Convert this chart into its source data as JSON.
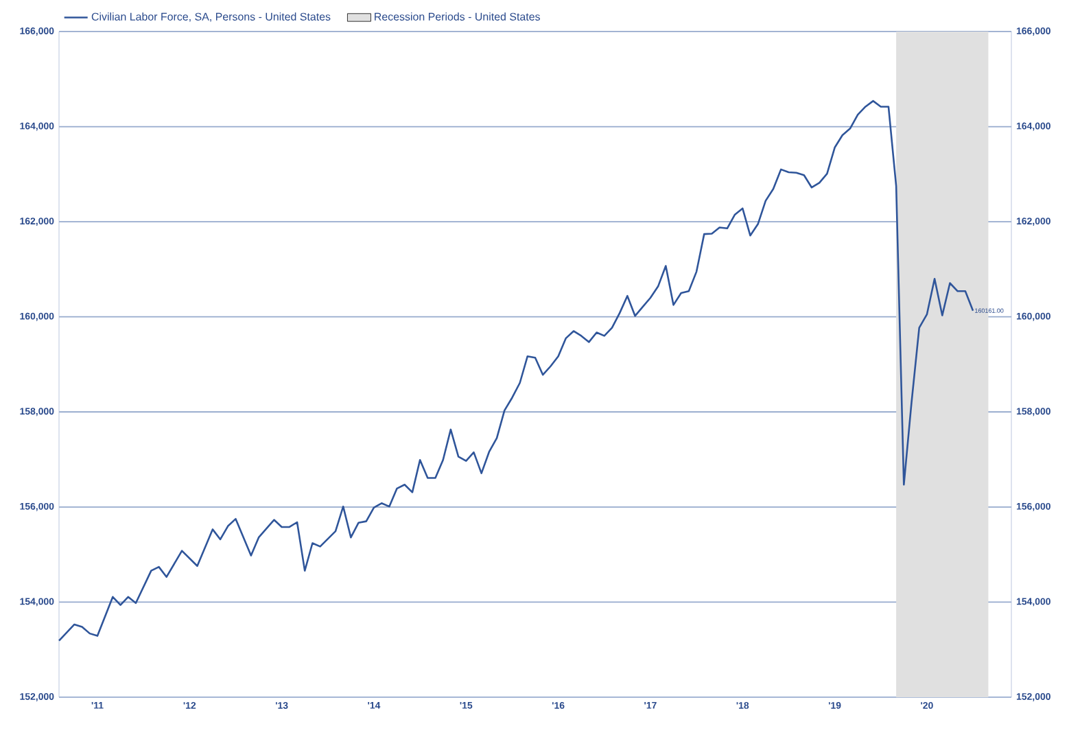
{
  "chart_data": {
    "type": "line",
    "legend": "top left",
    "grid": "y",
    "x": [
      "2011-02",
      "2011-04",
      "2011-05",
      "2011-06",
      "2011-07",
      "2011-09",
      "2011-10",
      "2011-11",
      "2011-12",
      "2012-02",
      "2012-03",
      "2012-04",
      "2012-06",
      "2012-08",
      "2012-10",
      "2012-11",
      "2012-12",
      "2013-01",
      "2013-03",
      "2013-04",
      "2013-06",
      "2013-07",
      "2013-08",
      "2013-09",
      "2013-10",
      "2013-11",
      "2013-12",
      "2014-02",
      "2014-03",
      "2014-04",
      "2014-05",
      "2014-06",
      "2014-07",
      "2014-08",
      "2014-09",
      "2014-10",
      "2014-11",
      "2014-12",
      "2015-01",
      "2015-02",
      "2015-03",
      "2015-04",
      "2015-05",
      "2015-06",
      "2015-07",
      "2015-08",
      "2015-09",
      "2015-10",
      "2015-11",
      "2015-12",
      "2016-01",
      "2016-02",
      "2016-03",
      "2016-04",
      "2016-05",
      "2016-06",
      "2016-07",
      "2016-08",
      "2016-09",
      "2016-10",
      "2016-11",
      "2016-12",
      "2017-01",
      "2017-02",
      "2017-03",
      "2017-04",
      "2017-05",
      "2017-06",
      "2017-07",
      "2017-08",
      "2017-09",
      "2017-10",
      "2017-11",
      "2017-12",
      "2018-01",
      "2018-02",
      "2018-03",
      "2018-04",
      "2018-05",
      "2018-06",
      "2018-07",
      "2018-08",
      "2018-09",
      "2018-10",
      "2018-11",
      "2018-12",
      "2019-01",
      "2019-02",
      "2019-03",
      "2019-04",
      "2019-05",
      "2019-06",
      "2019-07",
      "2019-08",
      "2019-09",
      "2019-10",
      "2019-11",
      "2019-12",
      "2020-01",
      "2020-02",
      "2020-03",
      "2020-04",
      "2020-05",
      "2020-06",
      "2020-07",
      "2020-08",
      "2020-09",
      "2020-10",
      "2020-11",
      "2020-12",
      "2021-01"
    ],
    "series": [
      {
        "name": "Civilian Labor Force, SA, Persons - United States",
        "color": "#2f559a",
        "values": [
          153190,
          153530,
          153480,
          153340,
          153290,
          154110,
          153940,
          154110,
          153980,
          154660,
          154740,
          154530,
          155080,
          154760,
          155530,
          155320,
          155600,
          155750,
          154980,
          155360,
          155730,
          155580,
          155580,
          155680,
          154660,
          155240,
          155170,
          155490,
          156010,
          155360,
          155670,
          155700,
          155990,
          156080,
          156010,
          156390,
          156470,
          156310,
          156990,
          156610,
          156610,
          156990,
          157630,
          157060,
          156970,
          157150,
          156710,
          157160,
          157450,
          158030,
          158300,
          158610,
          159170,
          159140,
          158780,
          158960,
          159170,
          159550,
          159700,
          159600,
          159470,
          159670,
          159600,
          159770,
          160080,
          160440,
          160020,
          160210,
          160400,
          160640,
          161070,
          160250,
          160500,
          160540,
          160950,
          161740,
          161750,
          161880,
          161860,
          162150,
          162280,
          161710,
          161950,
          162440,
          162690,
          163100,
          163040,
          163030,
          162980,
          162720,
          162820,
          163010,
          163560,
          163820,
          163960,
          164250,
          164420,
          164540,
          164420,
          164420,
          162750,
          156470,
          158200,
          159770,
          160050,
          160800,
          160030,
          160710,
          160540,
          160540,
          160130
        ]
      }
    ],
    "ylim": [
      152000,
      166000
    ],
    "yticks": [
      {
        "value": 152000,
        "label": "152,000"
      },
      {
        "value": 154000,
        "label": "154,000"
      },
      {
        "value": 156000,
        "label": "156,000"
      },
      {
        "value": 158000,
        "label": "158,000"
      },
      {
        "value": 160000,
        "label": "160,000"
      },
      {
        "value": 162000,
        "label": "162,000"
      },
      {
        "value": 164000,
        "label": "164,000"
      },
      {
        "value": 166000,
        "label": "166,000"
      }
    ],
    "y2lim": [
      152000,
      166000
    ],
    "y2ticks": [
      {
        "value": 152000,
        "label": "152,000"
      },
      {
        "value": 154000,
        "label": "154,000"
      },
      {
        "value": 156000,
        "label": "156,000"
      },
      {
        "value": 158000,
        "label": "158,000"
      },
      {
        "value": 160000,
        "label": "160,000"
      },
      {
        "value": 162000,
        "label": "162,000"
      },
      {
        "value": 164000,
        "label": "164,000"
      },
      {
        "value": 166000,
        "label": "166,000"
      }
    ],
    "xlim": [
      "2011-02",
      "2021-06"
    ],
    "xticks": [
      {
        "value": "2011-07",
        "label": "'11"
      },
      {
        "value": "2012-07",
        "label": "'12"
      },
      {
        "value": "2013-07",
        "label": "'13"
      },
      {
        "value": "2014-07",
        "label": "'14"
      },
      {
        "value": "2015-07",
        "label": "'15"
      },
      {
        "value": "2016-07",
        "label": "'16"
      },
      {
        "value": "2017-07",
        "label": "'17"
      },
      {
        "value": "2018-07",
        "label": "'18"
      },
      {
        "value": "2019-07",
        "label": "'19"
      },
      {
        "value": "2020-07",
        "label": "'20"
      }
    ],
    "bands": [
      {
        "axis": "x",
        "from": "2020-03",
        "to": "2021-03",
        "label": "Recession Periods - United States",
        "color": "#e0e0e0"
      }
    ],
    "annotations": [
      {
        "text": "160161.00",
        "x": "2021-01",
        "y": 160130
      }
    ]
  }
}
